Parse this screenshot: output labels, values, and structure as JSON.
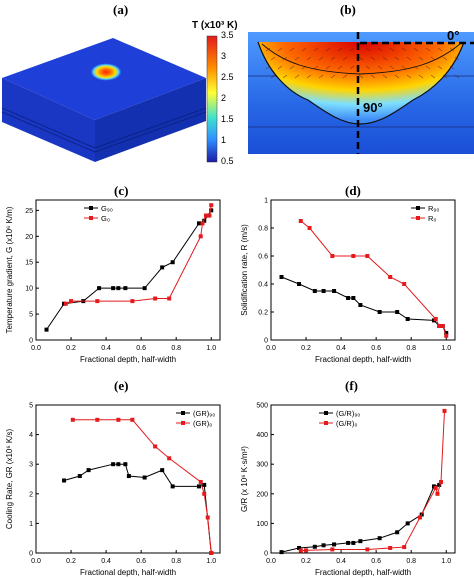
{
  "panels": {
    "a": "(a)",
    "b": "(b)",
    "c": "(c)",
    "d": "(d)",
    "e": "(e)",
    "f": "(f)"
  },
  "colorbar": {
    "title": "T (x10³ K)",
    "ticks": [
      "3.5",
      "3",
      "2.5",
      "2",
      "1.5",
      "1",
      "0.5"
    ]
  },
  "angles": {
    "top": "0°",
    "vertical": "90°"
  },
  "chart_data": [
    {
      "panel": "c",
      "type": "line",
      "xlabel": "Fractional depth, half-width",
      "ylabel": "Temperature gradient, G (x10⁶ K/m)",
      "xlim": [
        0,
        1.05
      ],
      "ylim": [
        0,
        27
      ],
      "xticks": [
        0,
        0.2,
        0.4,
        0.6,
        0.8,
        1.0
      ],
      "yticks": [
        0,
        5,
        10,
        15,
        20,
        25
      ],
      "legend_position": "top-left",
      "series": [
        {
          "name": "G₉₀",
          "color": "#000000",
          "x": [
            0.06,
            0.16,
            0.27,
            0.36,
            0.44,
            0.47,
            0.51,
            0.62,
            0.72,
            0.78,
            0.93,
            0.96,
            0.98,
            1.0
          ],
          "y": [
            2,
            7,
            7.5,
            10,
            10,
            10,
            10,
            10,
            14,
            15,
            22.5,
            23,
            24,
            25
          ]
        },
        {
          "name": "G₀",
          "color": "#e41a1c",
          "x": [
            0.17,
            0.2,
            0.35,
            0.55,
            0.68,
            0.76,
            0.94,
            0.95,
            0.97,
            0.99,
            1.0
          ],
          "y": [
            7,
            7.5,
            7.5,
            7.5,
            8,
            8,
            20,
            22.5,
            24,
            24,
            26
          ]
        }
      ]
    },
    {
      "panel": "d",
      "type": "line",
      "xlabel": "Fractional depth, half-width",
      "ylabel": "Solidification rate, R (m/s)",
      "xlim": [
        0,
        1.05
      ],
      "ylim": [
        0,
        1.0
      ],
      "xticks": [
        0,
        0.2,
        0.4,
        0.6,
        0.8,
        1.0
      ],
      "yticks": [
        0,
        0.2,
        0.4,
        0.6,
        0.8,
        1.0
      ],
      "legend_position": "top-right",
      "series": [
        {
          "name": "R₉₀",
          "color": "#000000",
          "x": [
            0.06,
            0.16,
            0.25,
            0.3,
            0.36,
            0.44,
            0.47,
            0.51,
            0.62,
            0.72,
            0.78,
            0.93,
            0.96,
            0.98,
            1.0
          ],
          "y": [
            0.45,
            0.4,
            0.35,
            0.35,
            0.35,
            0.3,
            0.3,
            0.25,
            0.2,
            0.2,
            0.15,
            0.14,
            0.1,
            0.1,
            0.05
          ]
        },
        {
          "name": "R₀",
          "color": "#e41a1c",
          "x": [
            0.17,
            0.22,
            0.35,
            0.47,
            0.55,
            0.68,
            0.76,
            0.94,
            0.96,
            0.98,
            1.0
          ],
          "y": [
            0.85,
            0.8,
            0.6,
            0.6,
            0.6,
            0.45,
            0.4,
            0.15,
            0.1,
            0.1,
            0.03
          ]
        }
      ]
    },
    {
      "panel": "e",
      "type": "line",
      "xlabel": "Fractional depth, half-width",
      "ylabel": "Cooling Rate, GR (x10⁶ K/s)",
      "xlim": [
        0,
        1.05
      ],
      "ylim": [
        0,
        5
      ],
      "xticks": [
        0,
        0.2,
        0.4,
        0.6,
        0.8,
        1.0
      ],
      "yticks": [
        0,
        1,
        2,
        3,
        4,
        5
      ],
      "legend_position": "top-right",
      "series": [
        {
          "name": "(GR)₉₀",
          "color": "#000000",
          "x": [
            0.16,
            0.25,
            0.3,
            0.44,
            0.47,
            0.51,
            0.53,
            0.62,
            0.72,
            0.78,
            0.93,
            0.96,
            1.0
          ],
          "y": [
            2.45,
            2.6,
            2.8,
            3.0,
            3.0,
            3.0,
            2.6,
            2.55,
            2.8,
            2.25,
            2.25,
            2.3,
            0
          ]
        },
        {
          "name": "(GR)₀",
          "color": "#e41a1c",
          "x": [
            0.21,
            0.35,
            0.47,
            0.55,
            0.68,
            0.76,
            0.94,
            0.96,
            0.98,
            1.0
          ],
          "y": [
            4.5,
            4.5,
            4.5,
            4.5,
            3.6,
            3.2,
            2.4,
            2.0,
            1.2,
            0
          ]
        }
      ]
    },
    {
      "panel": "f",
      "type": "line",
      "xlabel": "Fractional depth, half-width",
      "ylabel": "G/R (x 10⁶ K·s/m²)",
      "xlim": [
        0,
        1.05
      ],
      "ylim": [
        0,
        500
      ],
      "xticks": [
        0,
        0.2,
        0.4,
        0.6,
        0.8,
        1.0
      ],
      "yticks": [
        0,
        100,
        200,
        300,
        400,
        500
      ],
      "legend_position": "top-left",
      "series": [
        {
          "name": "(G/R)₉₀",
          "color": "#000000",
          "x": [
            0.06,
            0.16,
            0.25,
            0.3,
            0.36,
            0.44,
            0.47,
            0.51,
            0.62,
            0.72,
            0.78,
            0.86,
            0.93,
            0.96
          ],
          "y": [
            3,
            17,
            21,
            26,
            29,
            34,
            34,
            40,
            50,
            70,
            100,
            130,
            225,
            230
          ]
        },
        {
          "name": "(G/R)₀",
          "color": "#e41a1c",
          "x": [
            0.17,
            0.2,
            0.35,
            0.55,
            0.68,
            0.76,
            0.85,
            0.94,
            0.95,
            0.97,
            0.99
          ],
          "y": [
            8,
            9,
            12,
            12,
            17,
            20,
            120,
            220,
            200,
            240,
            480
          ]
        }
      ]
    }
  ]
}
